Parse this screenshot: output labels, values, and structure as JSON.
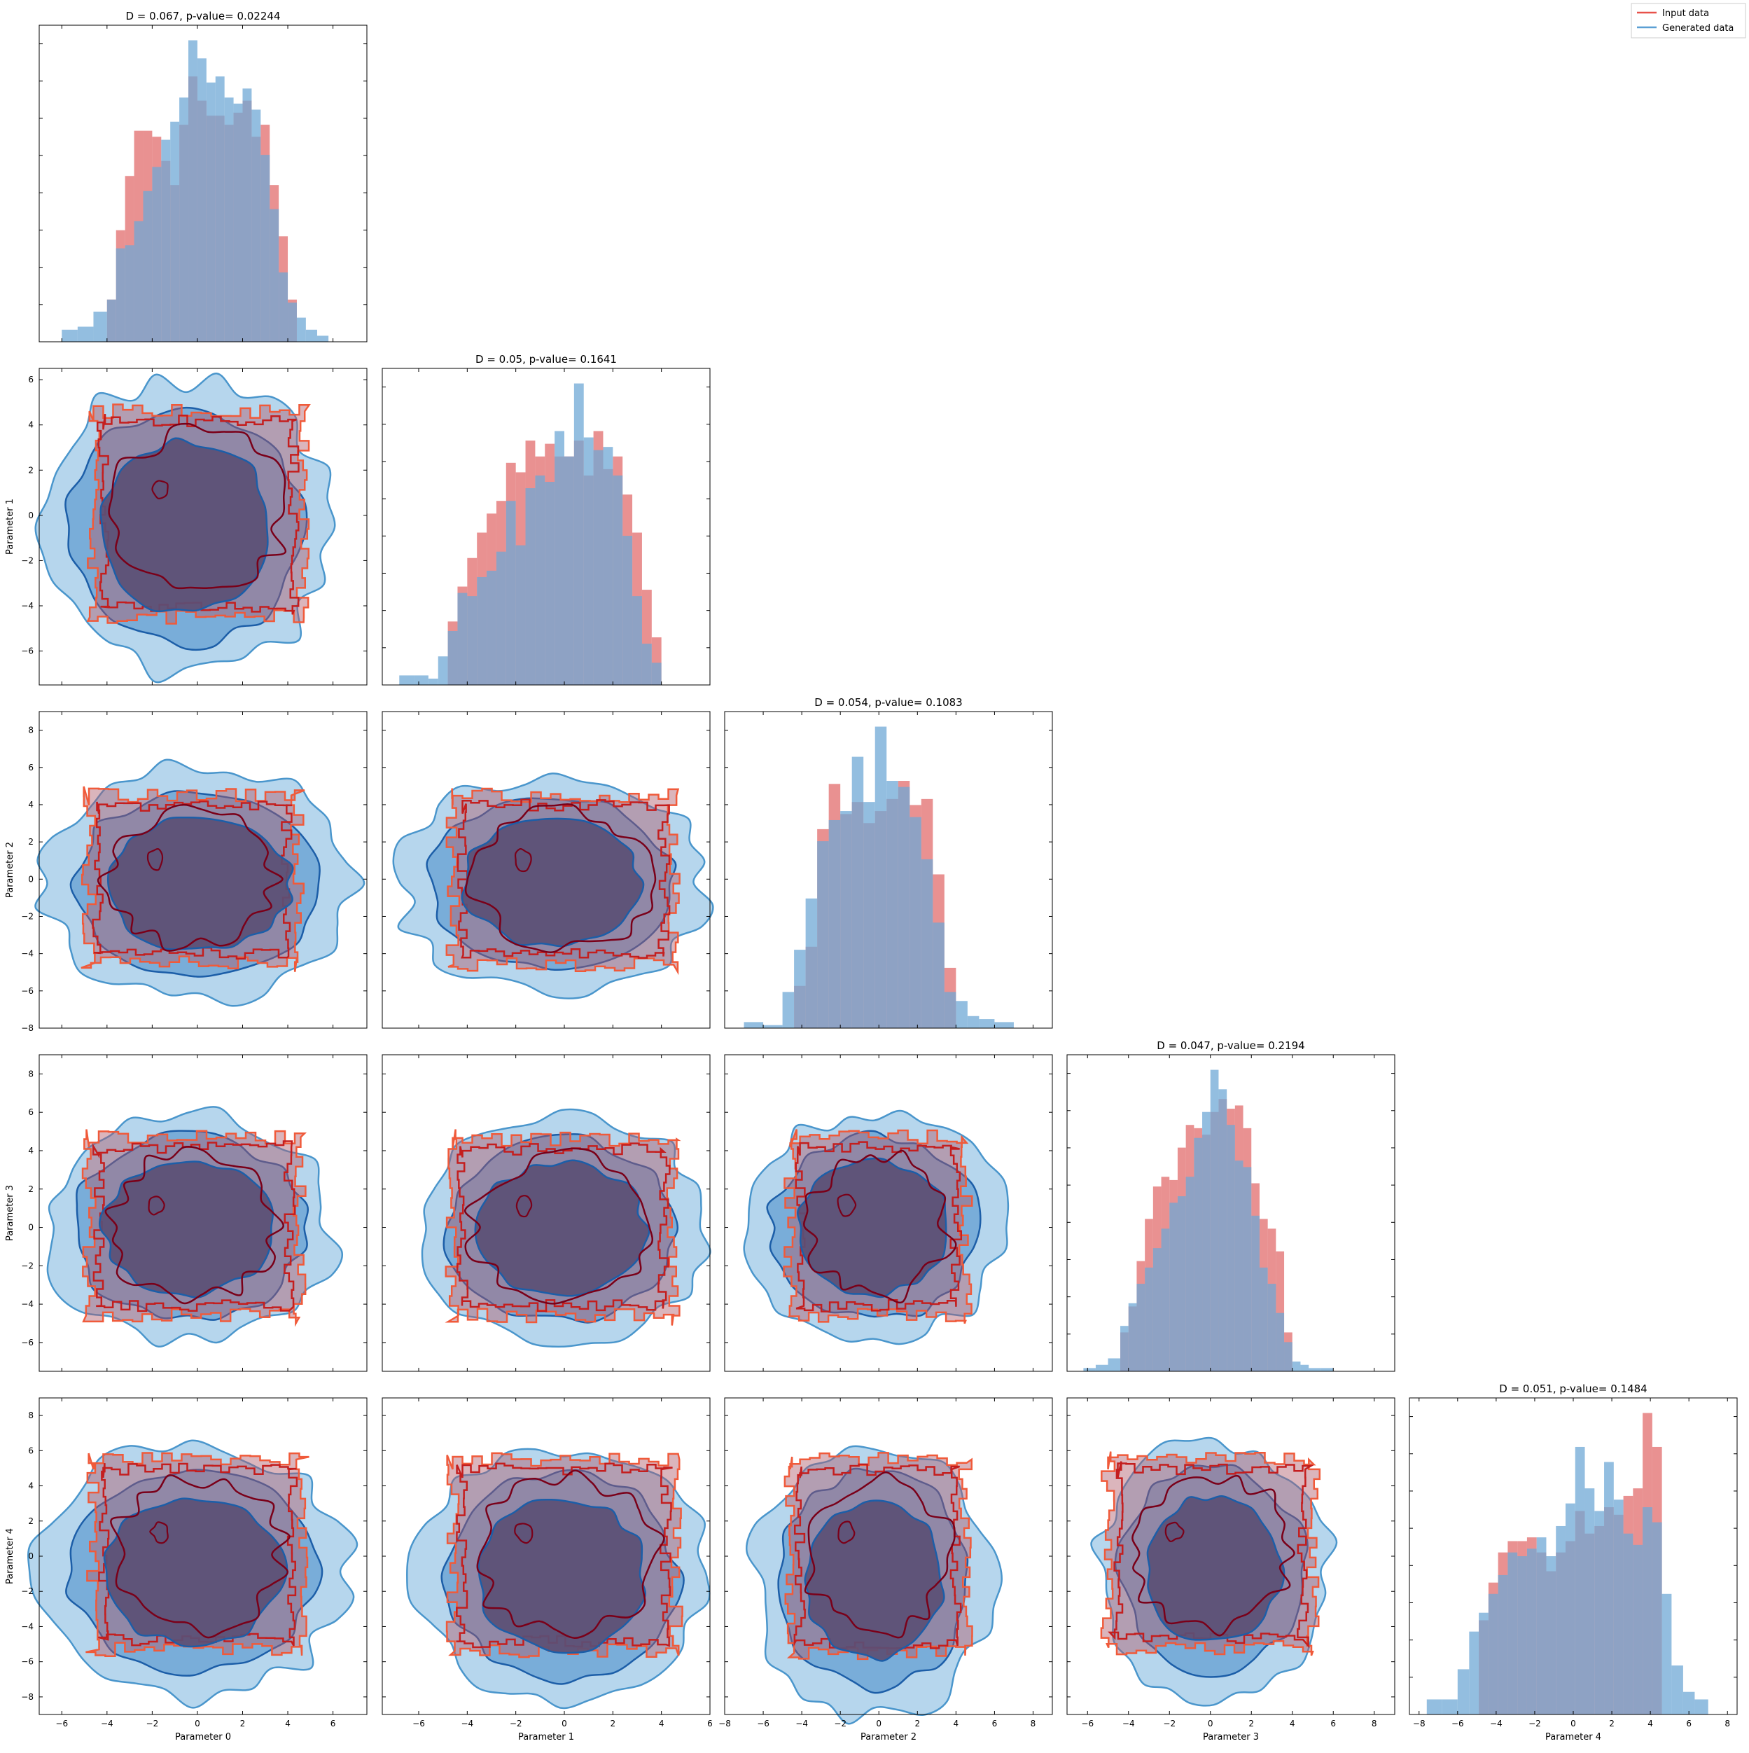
{
  "legend": {
    "placement": "top-right",
    "entries": [
      {
        "label": "Input data",
        "color": "#e8524a"
      },
      {
        "label": "Generated data",
        "color": "#5b9fd4"
      }
    ]
  },
  "colors": {
    "input_hist": "#e06666",
    "generated_hist": "#6fa8d6",
    "input_line_dark": "#7a0019",
    "input_line": "#c41e1e",
    "input_line_light": "#f05a3a",
    "generated_fill_light": "#a9cfea",
    "generated_fill_mid": "#6aa3d3",
    "generated_fill_dark": "#5b4f75",
    "generated_line": "#1c5ea8",
    "generated_line_light": "#4a96cc"
  },
  "x_axis_labels": [
    "Parameter 0",
    "Parameter 1",
    "Parameter 2",
    "Parameter 3",
    "Parameter 4"
  ],
  "y_axis_labels": [
    "",
    "Parameter 1",
    "Parameter 2",
    "Parameter 3",
    "Parameter 4"
  ],
  "chart_data": [
    {
      "type": "bar",
      "panel": "hist-0",
      "title": "D = 0.067, p-value= 0.02244",
      "xlim": [
        -7.0,
        7.5
      ],
      "bin_edges": [
        -6.0,
        -5.3,
        -4.6,
        -4.0,
        -3.6,
        -3.2,
        -2.8,
        -2.4,
        -2.0,
        -1.6,
        -1.2,
        -0.8,
        -0.4,
        0.0,
        0.4,
        0.8,
        1.2,
        1.6,
        2.0,
        2.4,
        2.8,
        3.2,
        3.6,
        4.0,
        4.4,
        4.8,
        5.3,
        5.8,
        6.3,
        6.8
      ],
      "series": [
        {
          "name": "Input data",
          "values": [
            0,
            0,
            0,
            14,
            37,
            55,
            70,
            70,
            68,
            60,
            52,
            72,
            88,
            80,
            75,
            75,
            72,
            76,
            80,
            68,
            72,
            52,
            35,
            14,
            0,
            0,
            0,
            0,
            0
          ]
        },
        {
          "name": "Generated data",
          "values": [
            4,
            5,
            10,
            14,
            31,
            32,
            40,
            50,
            58,
            67,
            73,
            81,
            100,
            94,
            86,
            88,
            81,
            79,
            84,
            77,
            62,
            44,
            23,
            13,
            8,
            4,
            2,
            0,
            0
          ]
        }
      ]
    },
    {
      "type": "bar",
      "panel": "hist-1",
      "title": "D = 0.05, p-value= 0.1641",
      "xlim": [
        -7.5,
        6.0
      ],
      "bin_edges": [
        -6.8,
        -6.2,
        -5.6,
        -5.2,
        -4.8,
        -4.4,
        -4.0,
        -3.6,
        -3.2,
        -2.8,
        -2.4,
        -2.0,
        -1.6,
        -1.2,
        -0.8,
        -0.4,
        0.0,
        0.4,
        0.8,
        1.2,
        1.6,
        2.0,
        2.4,
        2.8,
        3.2,
        3.6,
        4.0,
        4.4,
        4.8,
        5.4,
        6.0
      ],
      "series": [
        {
          "name": "Input data",
          "values": [
            0,
            0,
            0,
            0,
            20,
            31,
            40,
            48,
            54,
            58,
            70,
            67,
            77,
            72,
            76,
            72,
            72,
            77,
            66,
            80,
            68,
            72,
            60,
            48,
            30,
            15,
            0,
            0,
            0,
            0
          ]
        },
        {
          "name": "Generated data",
          "values": [
            3,
            3,
            2,
            9,
            17,
            29,
            28,
            34,
            36,
            42,
            58,
            44,
            62,
            66,
            64,
            80,
            72,
            95,
            78,
            74,
            75,
            66,
            47,
            28,
            13,
            7,
            0,
            0,
            0,
            0
          ]
        }
      ]
    },
    {
      "type": "bar",
      "panel": "hist-2",
      "title": "D = 0.054, p-value= 0.1083",
      "xlim": [
        -8.0,
        9.0
      ],
      "bin_edges": [
        -7.0,
        -6.0,
        -5.0,
        -4.4,
        -3.8,
        -3.2,
        -2.6,
        -2.0,
        -1.4,
        -0.8,
        -0.2,
        0.4,
        1.0,
        1.6,
        2.2,
        2.8,
        3.4,
        4.0,
        4.6,
        5.2,
        6.0,
        7.0,
        8.0
      ],
      "series": [
        {
          "name": "Input data",
          "values": [
            0,
            0,
            0,
            14,
            27,
            66,
            81,
            71,
            75,
            68,
            72,
            76,
            82,
            74,
            76,
            51,
            20,
            0,
            0,
            0,
            0,
            0
          ]
        },
        {
          "name": "Generated data",
          "values": [
            2,
            1,
            12,
            26,
            43,
            62,
            69,
            72,
            90,
            75,
            100,
            82,
            80,
            70,
            56,
            35,
            12,
            9,
            4,
            3,
            2,
            0
          ]
        }
      ]
    },
    {
      "type": "bar",
      "panel": "hist-3",
      "title": "D = 0.047, p-value= 0.2194",
      "xlim": [
        -7.0,
        9.0
      ],
      "bin_edges": [
        -6.2,
        -5.6,
        -5.0,
        -4.4,
        -4.0,
        -3.6,
        -3.2,
        -2.8,
        -2.4,
        -2.0,
        -1.6,
        -1.2,
        -0.8,
        -0.4,
        0.0,
        0.4,
        0.8,
        1.2,
        1.6,
        2.0,
        2.4,
        2.8,
        3.2,
        3.6,
        4.0,
        4.4,
        4.8,
        5.4,
        6.0,
        6.6,
        7.2,
        8.0
      ],
      "series": [
        {
          "name": "Input data",
          "values": [
            0,
            0,
            0,
            12,
            20,
            34,
            47,
            57,
            60,
            59,
            69,
            76,
            75,
            73,
            80,
            84,
            81,
            82,
            75,
            58,
            47,
            44,
            37,
            12,
            0,
            0,
            0,
            0,
            0,
            0,
            0
          ]
        },
        {
          "name": "Generated data",
          "values": [
            1,
            2,
            4,
            14,
            21,
            27,
            32,
            38,
            44,
            52,
            54,
            60,
            72,
            80,
            93,
            87,
            76,
            65,
            63,
            48,
            32,
            27,
            18,
            9,
            3,
            2,
            1,
            1,
            0,
            0,
            0
          ]
        }
      ]
    },
    {
      "type": "bar",
      "panel": "hist-4",
      "title": "D = 0.051, p-value= 0.1484",
      "xlim": [
        -8.5,
        8.5
      ],
      "bin_edges": [
        -7.6,
        -6.8,
        -6.0,
        -5.4,
        -4.9,
        -4.4,
        -3.9,
        -3.4,
        -2.9,
        -2.4,
        -1.9,
        -1.4,
        -0.9,
        -0.4,
        0.1,
        0.6,
        1.1,
        1.6,
        2.1,
        2.6,
        3.1,
        3.6,
        4.1,
        4.6,
        5.1,
        5.7,
        6.3,
        7.0,
        7.8
      ],
      "series": [
        {
          "name": "Input data",
          "values": [
            0,
            0,
            0,
            0,
            25,
            35,
            43,
            46,
            46,
            47,
            43,
            38,
            43,
            46,
            54,
            48,
            50,
            55,
            53,
            58,
            60,
            80,
            71,
            0,
            0,
            0,
            0,
            0
          ]
        },
        {
          "name": "Generated data",
          "values": [
            4,
            4,
            12,
            22,
            27,
            32,
            37,
            43,
            42,
            44,
            47,
            42,
            50,
            56,
            71,
            60,
            54,
            67,
            57,
            48,
            45,
            55,
            51,
            32,
            13,
            6,
            4,
            0
          ]
        }
      ]
    },
    {
      "type": "contour",
      "panel": "p1-vs-p0",
      "x": "Parameter 0",
      "y": "Parameter 1",
      "xlim": [
        -7.0,
        7.5
      ],
      "ylim": [
        -7.5,
        6.5
      ],
      "yticks": [
        -6,
        -4,
        -2,
        0,
        2,
        4,
        6
      ],
      "input_extent": {
        "x": [
          -4.6,
          4.7
        ],
        "y": [
          -4.5,
          4.6
        ]
      },
      "generated_extent": {
        "x": [
          -7.0,
          6.0
        ],
        "y": [
          -7.0,
          6.0
        ]
      }
    },
    {
      "type": "contour",
      "panel": "p2-vs-p0",
      "x": "Parameter 0",
      "y": "Parameter 2",
      "xlim": [
        -7.0,
        7.5
      ],
      "ylim": [
        -8.0,
        9.0
      ],
      "yticks": [
        -8,
        -6,
        -4,
        -2,
        0,
        2,
        4,
        6,
        8
      ],
      "input_extent": {
        "x": [
          -4.8,
          4.4
        ],
        "y": [
          -4.5,
          4.5
        ]
      },
      "generated_extent": {
        "x": [
          -6.8,
          7.0
        ],
        "y": [
          -6.5,
          6.0
        ]
      }
    },
    {
      "type": "contour",
      "panel": "p2-vs-p1",
      "x": "Parameter 1",
      "y": "Parameter 2",
      "xlim": [
        -7.5,
        6.0
      ],
      "ylim": [
        -8.0,
        9.0
      ],
      "input_extent": {
        "x": [
          -4.6,
          4.5
        ],
        "y": [
          -4.6,
          4.5
        ]
      },
      "generated_extent": {
        "x": [
          -6.8,
          5.8
        ],
        "y": [
          -6.0,
          5.6
        ]
      }
    },
    {
      "type": "contour",
      "panel": "p3-vs-p0",
      "x": "Parameter 0",
      "y": "Parameter 3",
      "xlim": [
        -7.0,
        7.5
      ],
      "ylim": [
        -7.5,
        9.0
      ],
      "yticks": [
        -6,
        -4,
        -2,
        0,
        2,
        4,
        6,
        8
      ],
      "input_extent": {
        "x": [
          -4.8,
          4.5
        ],
        "y": [
          -4.6,
          4.7
        ]
      },
      "generated_extent": {
        "x": [
          -6.8,
          6.0
        ],
        "y": [
          -6.0,
          6.0
        ]
      }
    },
    {
      "type": "contour",
      "panel": "p3-vs-p1",
      "x": "Parameter 1",
      "y": "Parameter 3",
      "xlim": [
        -7.5,
        6.0
      ],
      "ylim": [
        -7.5,
        9.0
      ],
      "input_extent": {
        "x": [
          -4.6,
          4.5
        ],
        "y": [
          -4.6,
          4.6
        ]
      },
      "generated_extent": {
        "x": [
          -6.0,
          5.8
        ],
        "y": [
          -6.0,
          5.8
        ]
      }
    },
    {
      "type": "contour",
      "panel": "p3-vs-p2",
      "x": "Parameter 2",
      "y": "Parameter 3",
      "xlim": [
        -8.0,
        9.0
      ],
      "ylim": [
        -7.5,
        9.0
      ],
      "input_extent": {
        "x": [
          -4.6,
          4.5
        ],
        "y": [
          -4.6,
          4.7
        ]
      },
      "generated_extent": {
        "x": [
          -7.0,
          6.5
        ],
        "y": [
          -6.0,
          6.0
        ]
      }
    },
    {
      "type": "contour",
      "panel": "p3-vs-p3",
      "x": "Parameter 3",
      "y": "Parameter 4",
      "xlim": [
        -7.0,
        9.0
      ],
      "ylim": [
        -9.0,
        9.0
      ],
      "input_extent": {
        "x": [
          -5.0,
          5.0
        ],
        "y": [
          -5.2,
          5.5
        ]
      },
      "generated_extent": {
        "x": [
          -5.5,
          5.8
        ],
        "y": [
          -8.0,
          6.5
        ]
      }
    },
    {
      "type": "contour",
      "panel": "p4-vs-p0",
      "x": "Parameter 0",
      "y": "Parameter 4",
      "xlim": [
        -7.0,
        7.5
      ],
      "ylim": [
        -9.0,
        9.0
      ],
      "yticks": [
        -8,
        -6,
        -4,
        -2,
        0,
        2,
        4,
        6,
        8
      ],
      "input_extent": {
        "x": [
          -4.6,
          4.6
        ],
        "y": [
          -5.3,
          5.5
        ]
      },
      "generated_extent": {
        "x": [
          -7.0,
          6.6
        ],
        "y": [
          -8.0,
          6.3
        ]
      }
    },
    {
      "type": "contour",
      "panel": "p4-vs-p1",
      "x": "Parameter 1",
      "y": "Parameter 4",
      "xlim": [
        -7.5,
        6.0
      ],
      "ylim": [
        -9.0,
        9.0
      ],
      "input_extent": {
        "x": [
          -4.6,
          4.6
        ],
        "y": [
          -5.4,
          5.5
        ]
      },
      "generated_extent": {
        "x": [
          -6.0,
          5.8
        ],
        "y": [
          -8.5,
          6.3
        ]
      }
    },
    {
      "type": "contour",
      "panel": "p4-vs-p2",
      "x": "Parameter 2",
      "y": "Parameter 4",
      "xlim": [
        -8.0,
        9.0
      ],
      "ylim": [
        -9.0,
        9.0
      ],
      "input_extent": {
        "x": [
          -4.6,
          4.5
        ],
        "y": [
          -5.5,
          5.5
        ]
      },
      "generated_extent": {
        "x": [
          -6.5,
          6.0
        ],
        "y": [
          -9.0,
          6.3
        ]
      }
    }
  ]
}
